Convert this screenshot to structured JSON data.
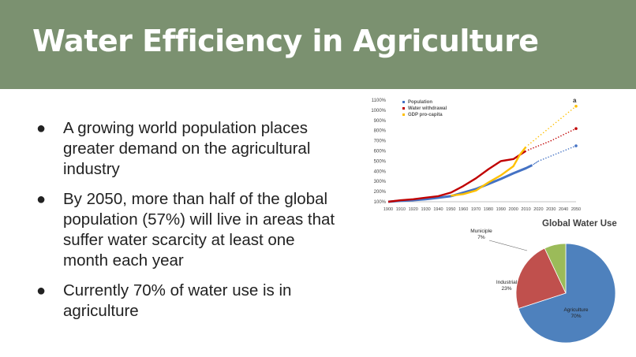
{
  "slide": {
    "title": "Water Efficiency in Agriculture",
    "bullet_marker": "●",
    "bullets": [
      "A growing world population places greater demand on the agricultural industry",
      "By 2050, more than half of the global population (57%) will live in areas that suffer water scarcity at least one month each year",
      "Currently 70% of water use is in agriculture"
    ]
  },
  "chart_data": [
    {
      "type": "line",
      "title": "",
      "panel_label": "a",
      "xlabel": "",
      "ylabel": "",
      "x_ticks": [
        1900,
        1910,
        1920,
        1930,
        1940,
        1950,
        1960,
        1970,
        1980,
        1990,
        2000,
        2010,
        2020,
        2030,
        2040,
        2050
      ],
      "y_ticks": [
        "100%",
        "200%",
        "300%",
        "400%",
        "500%",
        "600%",
        "700%",
        "800%",
        "900%",
        "1000%",
        "1100%"
      ],
      "xlim": [
        1900,
        2050
      ],
      "ylim": [
        100,
        1100
      ],
      "legend_position": "top-left",
      "series": [
        {
          "name": "Population",
          "color": "#4472c4",
          "x": [
            1900,
            1910,
            1920,
            1930,
            1940,
            1950,
            1960,
            1970,
            1980,
            1990,
            2000,
            2010,
            2015
          ],
          "values": [
            100,
            110,
            115,
            125,
            140,
            155,
            190,
            225,
            275,
            325,
            380,
            430,
            460
          ],
          "projection": {
            "x": [
              2015,
              2020,
              2030,
              2040,
              2050
            ],
            "values": [
              460,
              500,
              550,
              600,
              650
            ]
          }
        },
        {
          "name": "Water withdrawal",
          "color": "#c00000",
          "x": [
            1900,
            1910,
            1920,
            1930,
            1940,
            1950,
            1960,
            1970,
            1980,
            1990,
            2000,
            2005,
            2010
          ],
          "values": [
            100,
            115,
            125,
            140,
            155,
            190,
            255,
            330,
            420,
            500,
            520,
            560,
            600
          ],
          "projection": {
            "x": [
              2010,
              2020,
              2030,
              2040,
              2050
            ],
            "values": [
              600,
              650,
              700,
              760,
              820
            ]
          }
        },
        {
          "name": "GDP pro-capita",
          "color": "#ffc000",
          "x": [
            1950,
            1960,
            1970,
            1980,
            1990,
            2000,
            2005,
            2010
          ],
          "values": [
            160,
            175,
            210,
            290,
            360,
            450,
            560,
            640
          ],
          "projection": {
            "x": [
              2010,
              2020,
              2030,
              2040,
              2050
            ],
            "values": [
              640,
              740,
              840,
              940,
              1040
            ]
          }
        }
      ]
    },
    {
      "type": "pie",
      "title": "Global Water Use",
      "slices": [
        {
          "label": "Agriculture",
          "value": 70,
          "display": "70%",
          "color": "#4e81bd"
        },
        {
          "label": "Industrial",
          "value": 23,
          "display": "23%",
          "color": "#c0504d"
        },
        {
          "label": "Municiple",
          "value": 7,
          "display": "7%",
          "color": "#9bbb59"
        }
      ]
    }
  ]
}
